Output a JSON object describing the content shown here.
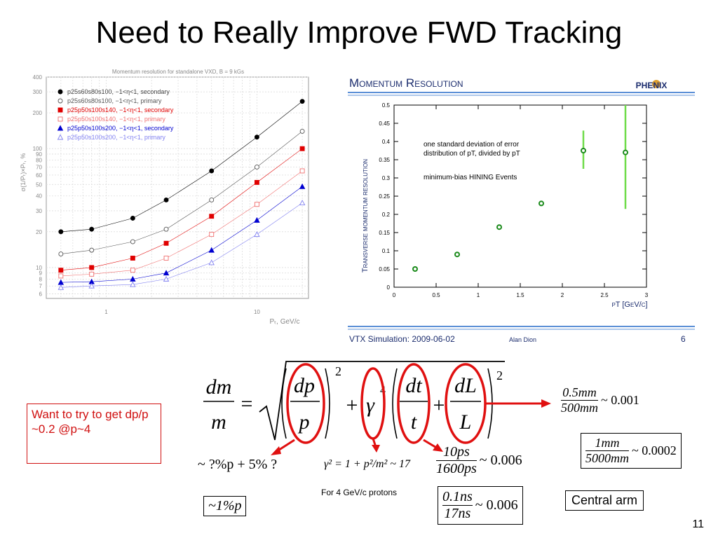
{
  "slide": {
    "title": "Need to Really Improve FWD Tracking",
    "page_number": "11",
    "callout_text": "Want to try to get dp/p ~0.2 @p~4",
    "central_arm_label": "Central arm",
    "protons_note": "For 4 GeV/c protons"
  },
  "left_chart": {
    "title": "Momentum resolution for standalone VXD, B = 9 kGs",
    "ylabel": "σ(1/Pₜ)×Pₜ, %",
    "xlabel": "Pₜ, GeV/c",
    "ytick_labels": [
      "6",
      "7",
      "8",
      "9",
      "10",
      "20",
      "30",
      "40",
      "50",
      "60",
      "70",
      "80",
      "90",
      "100",
      "200",
      "300",
      "400"
    ],
    "xtick_labels": [
      "1",
      "10"
    ],
    "legend": [
      "p25s60s80s100, −1<η<1, secondary",
      "p25s60s80s100, −1<η<1, primary",
      "p25p50s100s140, −1<η<1, secondary",
      "p25p50s100s140, −1<η<1, primary",
      "p25p50s100s200, −1<η<1, secondary",
      "p25p50s100s200, −1<η<1, primary"
    ]
  },
  "chart_data": [
    {
      "type": "scatter",
      "title": "Momentum resolution for standalone VXD, B = 9 kGs",
      "xlabel": "Pₜ, GeV/c",
      "ylabel": "σ(1/Pₜ)×Pₜ, %",
      "x_scale": "log",
      "y_scale": "log",
      "xlim": [
        0.4,
        22
      ],
      "ylim": [
        5.5,
        400
      ],
      "grid": true,
      "legend_position": "top-left",
      "x": [
        0.5,
        0.8,
        1.5,
        2.5,
        5,
        10,
        20
      ],
      "series": [
        {
          "name": "p25s60s80s100, −1<η<1, secondary",
          "color": "#000000",
          "marker": "filled-circle",
          "values": [
            20,
            21,
            26,
            37,
            65,
            125,
            250
          ]
        },
        {
          "name": "p25s60s80s100, −1<η<1, primary",
          "color": "#555555",
          "marker": "open-circle",
          "values": [
            13,
            14,
            16.5,
            21,
            37,
            70,
            140
          ]
        },
        {
          "name": "p25p50s100s140, −1<η<1, secondary",
          "color": "#e00000",
          "marker": "filled-square",
          "values": [
            9.5,
            10,
            12,
            16,
            27,
            52,
            100
          ]
        },
        {
          "name": "p25p50s100s140, −1<η<1, primary",
          "color": "#f07070",
          "marker": "open-square",
          "values": [
            8.5,
            8.8,
            9.5,
            12,
            19,
            34,
            65
          ]
        },
        {
          "name": "p25p50s100s200, −1<η<1, secondary",
          "color": "#0000d0",
          "marker": "filled-triangle",
          "values": [
            7.5,
            7.6,
            8,
            9,
            14,
            25,
            48
          ]
        },
        {
          "name": "p25p50s100s200, −1<η<1, primary",
          "color": "#8080f0",
          "marker": "open-triangle",
          "values": [
            6.8,
            7,
            7.2,
            8,
            11,
            19,
            35
          ]
        }
      ]
    },
    {
      "type": "scatter",
      "title": "Momentum Resolution",
      "xlabel": "pT [GeV/c]",
      "ylabel": "Transverse momentum resolution",
      "xlim": [
        0,
        3
      ],
      "ylim": [
        0,
        0.5
      ],
      "x_ticks": [
        "0",
        "0.5",
        "1",
        "1.5",
        "2",
        "2.5",
        "3"
      ],
      "y_ticks": [
        "0",
        "0.05",
        "0.1",
        "0.15",
        "0.2",
        "0.25",
        "0.3",
        "0.35",
        "0.4",
        "0.45",
        "0.5"
      ],
      "annotations": [
        "one standard deviation of error",
        "distribution of pT, divided by pT",
        "minimum-bias HINING Events"
      ],
      "series": [
        {
          "color": "#2ca02c",
          "marker": "open-circle",
          "x": [
            0.25,
            0.75,
            1.25,
            1.75,
            2.25,
            2.75
          ],
          "values": [
            0.05,
            0.09,
            0.165,
            0.23,
            0.375,
            0.37
          ],
          "error_low": [
            0,
            0,
            0,
            0,
            0.325,
            0.215
          ],
          "error_high": [
            0,
            0,
            0,
            0,
            0.43,
            0.5
          ]
        }
      ]
    }
  ],
  "right_panel": {
    "header": "Momentum Resolution",
    "logo": "PHENIX",
    "ylabel": "Transverse momentum resolution",
    "xlabel": "pT [GeV/c]",
    "annotation_lines": [
      "one standard deviation of error",
      "distribution of pT, divided by pT",
      "minimum-bias HINING Events"
    ],
    "footer_left": "VTX Simulation: 2009-06-02",
    "footer_author": "Alan Dion",
    "footer_page": "6"
  },
  "equations": {
    "main": "dm/m = sqrt((dp/p)^2 + γ^4 (dt/t + dL/L)^2)",
    "dp_note": "~ ?%p + 5% ?",
    "dp_box": "~1%p",
    "gamma": "γ² = 1 + p²/m² ~ 17",
    "dt1_num": "10ps",
    "dt1_den": "1600ps",
    "dt1_val": "~ 0.006",
    "dt2_num": "0.1ns",
    "dt2_den": "17ns",
    "dt2_val": "~ 0.006",
    "dl1_num": "0.5mm",
    "dl1_den": "500mm",
    "dl1_val": "~ 0.001",
    "dl2_num": "1mm",
    "dl2_den": "5000mm",
    "dl2_val": "~ 0.0002"
  }
}
